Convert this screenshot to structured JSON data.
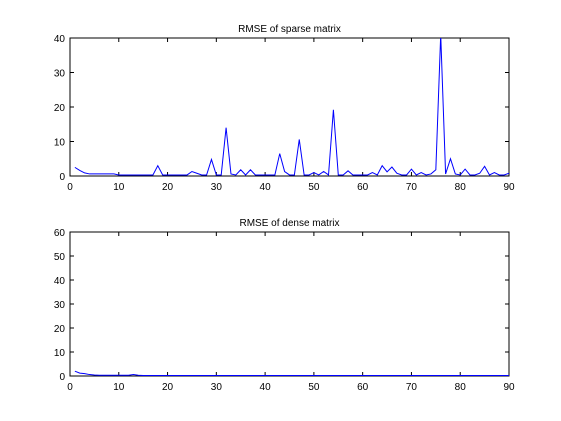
{
  "chart_data": [
    {
      "type": "line",
      "title": "RMSE of sparse matrix",
      "xlabel": "",
      "ylabel": "",
      "xlim": [
        0,
        90
      ],
      "ylim": [
        0,
        40
      ],
      "xticks": [
        0,
        10,
        20,
        30,
        40,
        50,
        60,
        70,
        80,
        90
      ],
      "yticks": [
        0,
        10,
        20,
        30,
        40
      ],
      "grid": false,
      "line_color": "#0000ff",
      "series": [
        {
          "x": [
            1,
            2,
            3,
            4,
            5,
            6,
            7,
            8,
            9,
            10,
            11,
            12,
            13,
            14,
            15,
            16,
            17,
            18,
            19,
            20,
            21,
            22,
            23,
            24,
            25,
            26,
            27,
            28,
            29,
            30,
            31,
            32,
            33,
            34,
            35,
            36,
            37,
            38,
            39,
            40,
            41,
            42,
            43,
            44,
            45,
            46,
            47,
            48,
            49,
            50,
            51,
            52,
            53,
            54,
            55,
            56,
            57,
            58,
            59,
            60,
            61,
            62,
            63,
            64,
            65,
            66,
            67,
            68,
            69,
            70,
            71,
            72,
            73,
            74,
            75,
            76,
            77,
            78,
            79,
            80,
            81,
            82,
            83,
            84,
            85,
            86,
            87,
            88,
            89,
            90
          ],
          "y": [
            2.5,
            1.6,
            0.9,
            0.6,
            0.6,
            0.6,
            0.6,
            0.6,
            0.6,
            0.3,
            0.3,
            0.3,
            0.3,
            0.3,
            0.3,
            0.3,
            0.3,
            3.0,
            0.3,
            0.3,
            0.3,
            0.3,
            0.3,
            0.3,
            1.3,
            0.8,
            0.3,
            0.3,
            4.8,
            0.3,
            0.3,
            14.0,
            0.6,
            0.3,
            1.8,
            0.3,
            1.8,
            0.3,
            0.3,
            0.3,
            0.3,
            0.3,
            6.5,
            1.3,
            0.3,
            0.3,
            10.6,
            0.3,
            0.3,
            1.0,
            0.3,
            1.3,
            0.3,
            19.2,
            0.3,
            0.3,
            1.5,
            0.3,
            0.3,
            0.3,
            0.3,
            1.0,
            0.3,
            3.0,
            1.2,
            2.6,
            0.8,
            0.3,
            0.3,
            2.0,
            0.3,
            1.0,
            0.3,
            0.6,
            1.8,
            41.0,
            0.6,
            5.0,
            0.6,
            0.3,
            2.0,
            0.3,
            0.3,
            0.8,
            2.8,
            0.3,
            1.0,
            0.3,
            0.3,
            0.8
          ]
        }
      ]
    },
    {
      "type": "line",
      "title": "RMSE of dense matrix",
      "xlabel": "",
      "ylabel": "",
      "xlim": [
        0,
        90
      ],
      "ylim": [
        0,
        60
      ],
      "xticks": [
        0,
        10,
        20,
        30,
        40,
        50,
        60,
        70,
        80,
        90
      ],
      "yticks": [
        0,
        10,
        20,
        30,
        40,
        50,
        60
      ],
      "grid": false,
      "line_color": "#0000ff",
      "series": [
        {
          "x": [
            1,
            2,
            3,
            4,
            5,
            6,
            7,
            8,
            9,
            10,
            11,
            12,
            13,
            14,
            15,
            16,
            17,
            18,
            19,
            20,
            21,
            22,
            23,
            24,
            25,
            26,
            27,
            28,
            29,
            30,
            31,
            32,
            33,
            34,
            35,
            36,
            37,
            38,
            39,
            40,
            41,
            42,
            43,
            44,
            45,
            46,
            47,
            48,
            49,
            50,
            51,
            52,
            53,
            54,
            55,
            56,
            57,
            58,
            59,
            60,
            61,
            62,
            63,
            64,
            65,
            66,
            67,
            68,
            69,
            70,
            71,
            72,
            73,
            74,
            75,
            76,
            77,
            78,
            79,
            80,
            81,
            82,
            83,
            84,
            85,
            86,
            87,
            88,
            89,
            90
          ],
          "y": [
            2.0,
            1.2,
            1.0,
            0.6,
            0.4,
            0.3,
            0.3,
            0.3,
            0.3,
            0.3,
            0.3,
            0.3,
            0.6,
            0.3,
            0.2,
            0.2,
            0.2,
            0.2,
            0.2,
            0.2,
            0.2,
            0.2,
            0.2,
            0.2,
            0.2,
            0.2,
            0.2,
            0.2,
            0.2,
            0.2,
            0.2,
            0.2,
            0.2,
            0.2,
            0.2,
            0.2,
            0.2,
            0.2,
            0.2,
            0.2,
            0.2,
            0.2,
            0.2,
            0.2,
            0.2,
            0.2,
            0.2,
            0.2,
            0.2,
            0.2,
            0.2,
            0.2,
            0.2,
            0.2,
            0.2,
            0.2,
            0.2,
            0.2,
            0.2,
            0.2,
            0.2,
            0.2,
            0.2,
            0.2,
            0.2,
            0.2,
            0.2,
            0.2,
            0.2,
            0.2,
            0.2,
            0.2,
            0.2,
            0.2,
            0.2,
            0.2,
            0.2,
            0.2,
            0.2,
            0.2,
            0.2,
            0.2,
            0.2,
            0.2,
            0.2,
            0.2,
            0.2,
            0.2,
            0.2,
            0.2
          ]
        }
      ]
    }
  ]
}
